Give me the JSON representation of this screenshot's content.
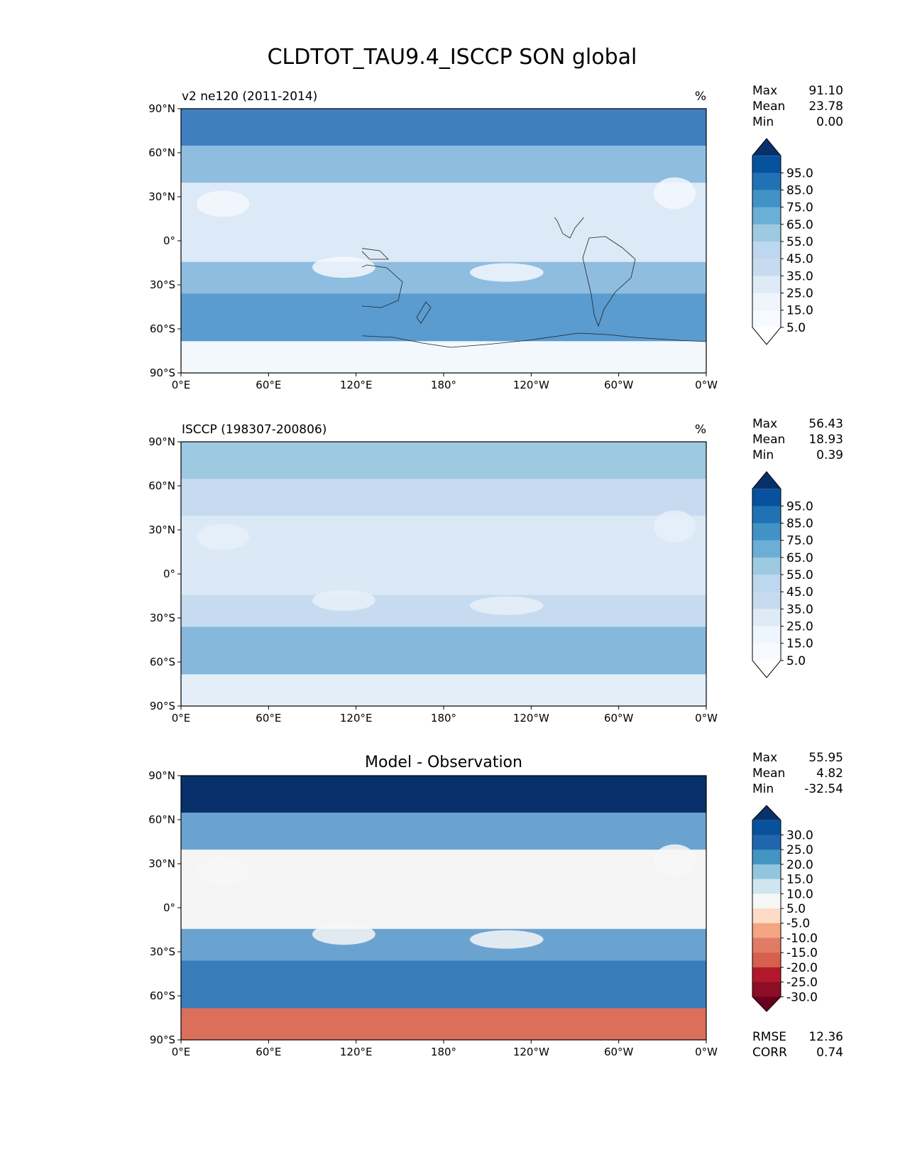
{
  "title": "CLDTOT_TAU9.4_ISCCP SON global",
  "lon_ticks": [
    "0°E",
    "60°E",
    "120°E",
    "180°",
    "120°W",
    "60°W",
    "0°W"
  ],
  "lat_ticks": [
    "90°N",
    "60°N",
    "30°N",
    "0°",
    "30°S",
    "60°S",
    "90°S"
  ],
  "panels": [
    {
      "id": "model",
      "left_title": "v2 ne120 (2011-2014)",
      "right_title": "%",
      "center_title": "",
      "stats": [
        {
          "label": "Max",
          "value": "91.10"
        },
        {
          "label": "Mean",
          "value": "23.78"
        },
        {
          "label": "Min",
          "value": "0.00"
        }
      ],
      "colorbar": {
        "labels": [
          "95.0",
          "85.0",
          "75.0",
          "65.0",
          "55.0",
          "45.0",
          "35.0",
          "25.0",
          "15.0",
          "5.0"
        ],
        "colors": [
          "#08306b",
          "#08519c",
          "#2171b5",
          "#4292c6",
          "#6baed6",
          "#9ecae1",
          "#bdd7ee",
          "#c6dbef",
          "#deebf7",
          "#eef5fc",
          "#f7fbff",
          "#ffffff"
        ]
      },
      "field_colors": {
        "pole_n": "#3f7fc0",
        "mid_n": "#8fbde0",
        "tropics": "#dce9f6",
        "desert": "#f3f8fd",
        "south_ocean": "#5a9bd0",
        "antarctica": "#f3f8fd"
      }
    },
    {
      "id": "obs",
      "left_title": "ISCCP (198307-200806)",
      "right_title": "%",
      "center_title": "",
      "stats": [
        {
          "label": "Max",
          "value": "56.43"
        },
        {
          "label": "Mean",
          "value": "18.93"
        },
        {
          "label": "Min",
          "value": "0.39"
        }
      ],
      "colorbar": {
        "labels": [
          "95.0",
          "85.0",
          "75.0",
          "65.0",
          "55.0",
          "45.0",
          "35.0",
          "25.0",
          "15.0",
          "5.0"
        ],
        "colors": [
          "#08306b",
          "#08519c",
          "#2171b5",
          "#4292c6",
          "#6baed6",
          "#9ecae1",
          "#bdd7ee",
          "#c6dbef",
          "#deebf7",
          "#eef5fc",
          "#f7fbff",
          "#ffffff"
        ]
      },
      "field_colors": {
        "pole_n": "#9ecae1",
        "mid_n": "#c6dbef",
        "tropics": "#dbe8f5",
        "desert": "#e6f0f9",
        "south_ocean": "#86b8dc",
        "antarctica": "#e3eef8"
      }
    },
    {
      "id": "diff",
      "left_title": "",
      "right_title": "",
      "center_title": "Model - Observation",
      "stats": [
        {
          "label": "Max",
          "value": "55.95"
        },
        {
          "label": "Mean",
          "value": "4.82"
        },
        {
          "label": "Min",
          "value": "-32.54"
        }
      ],
      "colorbar": {
        "labels": [
          "30.0",
          "25.0",
          "20.0",
          "15.0",
          "10.0",
          "5.0",
          "-5.0",
          "-10.0",
          "-15.0",
          "-20.0",
          "-25.0",
          "-30.0"
        ],
        "colors": [
          "#08306b",
          "#08519c",
          "#2166ac",
          "#4393c3",
          "#92c5de",
          "#d1e5f0",
          "#f7f7f7",
          "#fddbc7",
          "#f4a582",
          "#e07b66",
          "#d6604d",
          "#b2182b",
          "#8c0d25",
          "#67001f"
        ]
      },
      "field_colors": {
        "pole_n": "#08306b",
        "mid_n": "#6ba3d0",
        "tropics": "#f5f5f5",
        "desert": "#f7f7f7",
        "south_ocean": "#3a7dbd",
        "antarctica": "#dc6f5c"
      },
      "metrics": [
        {
          "label": "RMSE",
          "value": "12.36"
        },
        {
          "label": "CORR",
          "value": "0.74"
        }
      ]
    }
  ]
}
